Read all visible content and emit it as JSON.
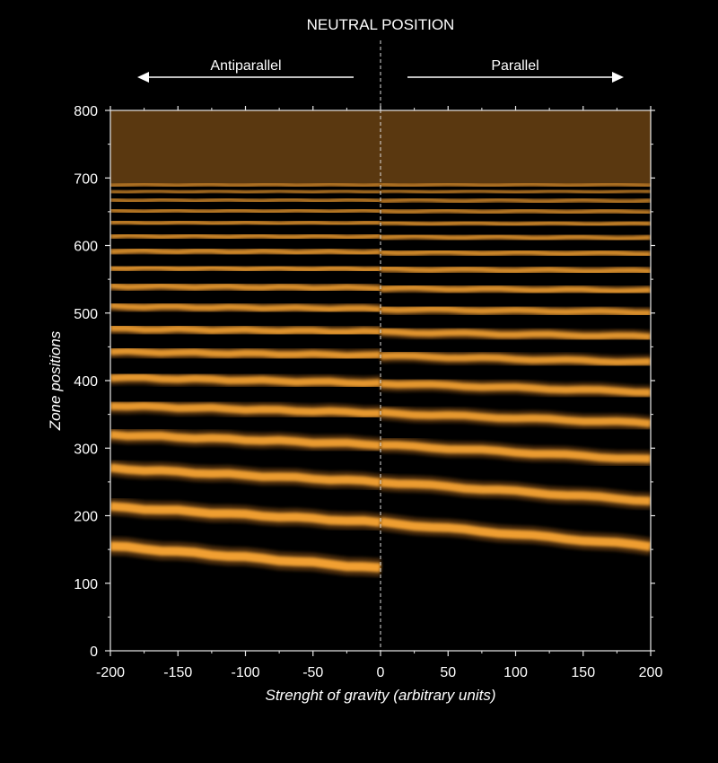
{
  "chart_data": {
    "type": "heatmap",
    "title": "NEUTRAL POSITION",
    "xlabel": "Strenght of gravity",
    "xlabel_units": "(arbitrary units)",
    "ylabel": "Zone positions",
    "xlim": [
      -200,
      200
    ],
    "ylim": [
      0,
      800
    ],
    "x_ticks": [
      -200,
      -150,
      -100,
      -50,
      0,
      50,
      100,
      150,
      200
    ],
    "y_ticks": [
      0,
      100,
      200,
      300,
      400,
      500,
      600,
      700,
      800
    ],
    "grid": false,
    "neutral_line_x": 0,
    "direction_labels": {
      "left": "Antiparallel",
      "right": "Parallel"
    },
    "colors": {
      "background": "#000000",
      "band": "#f2a030",
      "band_faint": "#7a4a12",
      "upper_region": "#5a3810"
    },
    "upper_region_start": 690,
    "band_positions_at_x": {
      "x": [
        -200,
        0,
        200
      ],
      "series": [
        {
          "band": 1,
          "y": [
            155,
            122,
            null
          ]
        },
        {
          "band": 2,
          "y": [
            213,
            190,
            155
          ]
        },
        {
          "band": 3,
          "y": [
            270,
            250,
            222
          ]
        },
        {
          "band": 4,
          "y": [
            320,
            305,
            283
          ]
        },
        {
          "band": 5,
          "y": [
            363,
            352,
            337
          ]
        },
        {
          "band": 6,
          "y": [
            405,
            396,
            383
          ]
        },
        {
          "band": 7,
          "y": [
            443,
            437,
            427
          ]
        },
        {
          "band": 8,
          "y": [
            477,
            472,
            465
          ]
        },
        {
          "band": 9,
          "y": [
            510,
            506,
            501
          ]
        },
        {
          "band": 10,
          "y": [
            540,
            537,
            533
          ]
        },
        {
          "band": 11,
          "y": [
            567,
            565,
            562
          ]
        },
        {
          "band": 12,
          "y": [
            592,
            590,
            588
          ]
        },
        {
          "band": 13,
          "y": [
            614,
            613,
            611
          ]
        },
        {
          "band": 14,
          "y": [
            634,
            633,
            632
          ]
        },
        {
          "band": 15,
          "y": [
            651,
            651,
            650
          ]
        },
        {
          "band": 16,
          "y": [
            667,
            667,
            666
          ]
        },
        {
          "band": 17,
          "y": [
            680,
            680,
            680
          ]
        },
        {
          "band": 18,
          "y": [
            690,
            690,
            690
          ]
        }
      ]
    }
  }
}
